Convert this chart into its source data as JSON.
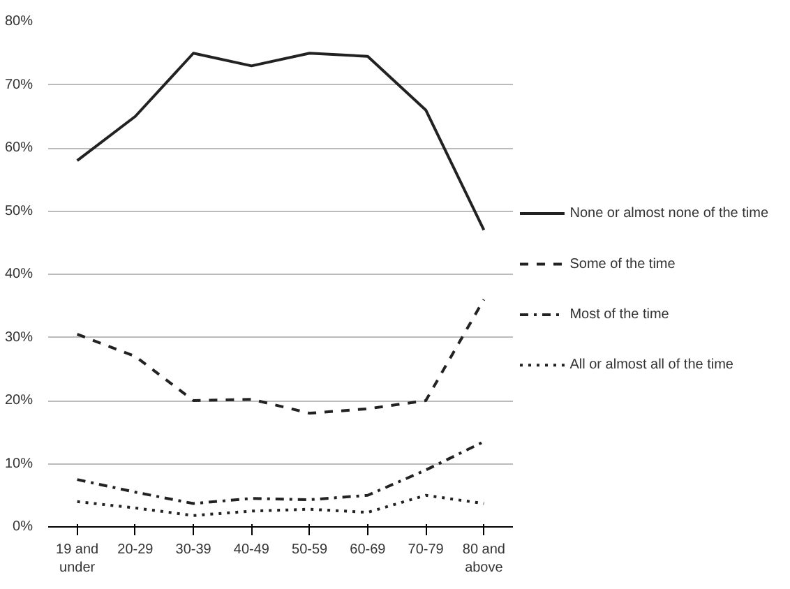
{
  "chart_data": {
    "type": "line",
    "categories": [
      "19 and\nunder",
      "20-29",
      "30-39",
      "40-49",
      "50-59",
      "60-69",
      "70-79",
      "80 and\nabove"
    ],
    "series": [
      {
        "name": "None or almost none of the time",
        "color": "#222222",
        "line_style": "solid",
        "values": [
          58,
          65,
          75,
          73,
          75,
          74.5,
          66,
          47
        ]
      },
      {
        "name": "Some of the time",
        "color": "#222222",
        "line_style": "dashed",
        "values": [
          30.5,
          27,
          20,
          20.2,
          18,
          18.7,
          20,
          36
        ]
      },
      {
        "name": "Most of the time",
        "color": "#222222",
        "line_style": "dashdot",
        "values": [
          7.5,
          5.5,
          3.7,
          4.5,
          4.3,
          5,
          9,
          13.5
        ]
      },
      {
        "name": "All or almost all of the time",
        "color": "#222222",
        "line_style": "dotted",
        "values": [
          4,
          3,
          1.8,
          2.5,
          2.8,
          2.3,
          5,
          3.7
        ]
      }
    ],
    "ylim": [
      0,
      80
    ],
    "yticks": [
      {
        "value": 0,
        "label": "0%"
      },
      {
        "value": 10,
        "label": "10%"
      },
      {
        "value": 20,
        "label": "20%"
      },
      {
        "value": 30,
        "label": "30%"
      },
      {
        "value": 40,
        "label": "40%"
      },
      {
        "value": 50,
        "label": "50%"
      },
      {
        "value": 60,
        "label": "60%"
      },
      {
        "value": 70,
        "label": "70%"
      },
      {
        "value": 80,
        "label": "80%"
      }
    ],
    "grid": "y",
    "legend": "right",
    "marker": "none"
  }
}
